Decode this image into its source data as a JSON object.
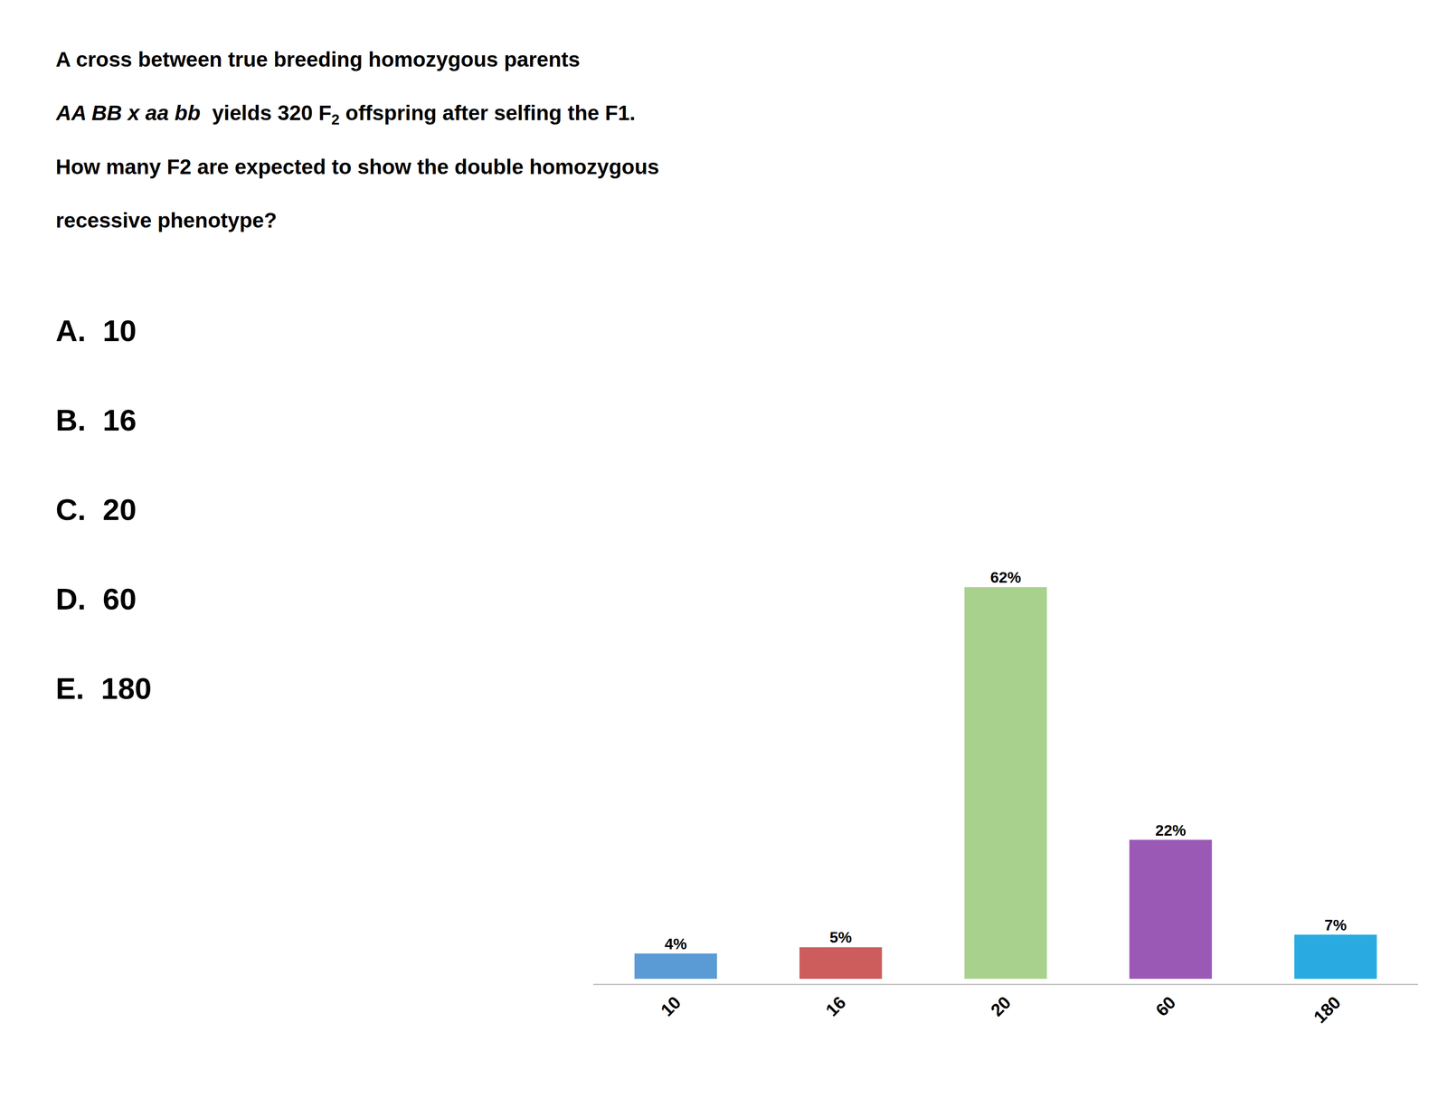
{
  "chart_data": {
    "type": "bar",
    "categories": [
      "10",
      "16",
      "20",
      "60",
      "180"
    ],
    "values": [
      4,
      5,
      62,
      22,
      7
    ],
    "value_labels": [
      "4%",
      "5%",
      "62%",
      "22%",
      "7%"
    ],
    "colors": [
      "#5B9BD5",
      "#CD5C5C",
      "#A9D18E",
      "#9B59B6",
      "#29ABE2"
    ],
    "data_labels": true,
    "ylim": [
      -0.8,
      70
    ],
    "tick_labels": "x",
    "grid": false,
    "annotations": [
      "A cross between true breeding homozygous parents",
      [
        {
          "text": "AA BB x aa bb",
          "italic": true
        },
        {
          "text": "  yields 320 F"
        },
        {
          "text": "2",
          "subscript": true
        },
        {
          "text": " offspring after selfing the F1."
        }
      ],
      "How many F2 are expected to show the double homozygous",
      "recessive phenotype?",
      "A.  10",
      "B.  16",
      "C.  20",
      "D.  60",
      "E.  180"
    ]
  }
}
